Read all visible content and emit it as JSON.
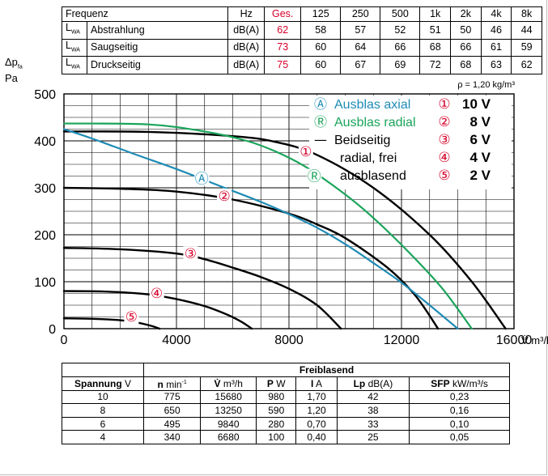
{
  "noise_table": {
    "header": [
      "Frequenz",
      "Hz",
      "Ges.",
      "125",
      "250",
      "500",
      "1k",
      "2k",
      "4k",
      "8k"
    ],
    "rows": [
      {
        "sym": "L",
        "sub": "WA",
        "label": "Abstrahlung",
        "unit": "dB(A)",
        "ges": "62",
        "vals": [
          "58",
          "57",
          "52",
          "51",
          "50",
          "46",
          "44"
        ]
      },
      {
        "sym": "L",
        "sub": "WA",
        "label": "Saugseitig",
        "unit": "dB(A)",
        "ges": "73",
        "vals": [
          "60",
          "64",
          "66",
          "68",
          "66",
          "61",
          "59"
        ]
      },
      {
        "sym": "L",
        "sub": "WA",
        "label": "Druckseitig",
        "unit": "dB(A)",
        "ges": "75",
        "vals": [
          "60",
          "67",
          "69",
          "72",
          "68",
          "63",
          "62"
        ]
      }
    ]
  },
  "y_axis_label": {
    "symbol": "Δp",
    "sub": "fa",
    "unit": "Pa"
  },
  "x_axis_label": "V̇ m³/h",
  "density_note": "ρ = 1,20 kg/m³",
  "chart_data": {
    "type": "line",
    "xlim": [
      0,
      16000
    ],
    "ylim": [
      0,
      500
    ],
    "xticks": [
      0,
      4000,
      8000,
      12000,
      16000
    ],
    "yticks": [
      0,
      100,
      200,
      300,
      400,
      500
    ],
    "xtick_labels": [
      "0",
      "4000",
      "8000",
      "12000",
      "16000"
    ],
    "ytick_labels": [
      "0",
      "100",
      "200",
      "300",
      "400",
      "500"
    ],
    "grid": true,
    "legend_position": "top-right",
    "series": [
      {
        "key": "1",
        "color": "#000000",
        "x": [
          0,
          3000,
          6000,
          7500,
          9000,
          11000,
          13000,
          14500,
          15700
        ],
        "y": [
          420,
          419,
          410,
          398,
          370,
          300,
          200,
          100,
          0
        ]
      },
      {
        "key": "2",
        "color": "#000000",
        "x": [
          0,
          2000,
          4000,
          6000,
          8000,
          9000,
          10000,
          11500,
          12500,
          13300
        ],
        "y": [
          300,
          298,
          292,
          275,
          245,
          222,
          193,
          130,
          70,
          0
        ]
      },
      {
        "key": "3",
        "color": "#000000",
        "x": [
          0,
          2000,
          4000,
          5000,
          6000,
          7000,
          8000,
          9000,
          9850
        ],
        "y": [
          172,
          169,
          160,
          148,
          130,
          110,
          85,
          50,
          0
        ]
      },
      {
        "key": "4",
        "color": "#000000",
        "x": [
          0,
          1500,
          3000,
          4000,
          5000,
          5800,
          6300,
          6680
        ],
        "y": [
          80,
          79,
          73,
          63,
          48,
          30,
          15,
          0
        ]
      },
      {
        "key": "5",
        "color": "#000000",
        "x": [
          0,
          1000,
          2000,
          2600,
          3100,
          3400
        ],
        "y": [
          22,
          21,
          18,
          13,
          6,
          0
        ]
      },
      {
        "key": "A",
        "color": "#1e8bb5",
        "x": [
          0,
          1000,
          2500,
          4000,
          5500,
          7000,
          8000,
          9000,
          10000,
          11000,
          12000,
          13000,
          14000
        ],
        "y": [
          425,
          405,
          372,
          340,
          305,
          270,
          244,
          215,
          180,
          140,
          98,
          50,
          0
        ]
      },
      {
        "key": "R",
        "color": "#1aa45a",
        "x": [
          0,
          3000,
          5000,
          6500,
          7500,
          8500,
          9500,
          10500,
          11500,
          12500,
          13500,
          14500
        ],
        "y": [
          437,
          435,
          420,
          400,
          378,
          348,
          308,
          262,
          208,
          148,
          82,
          0
        ]
      }
    ],
    "curve_markers": [
      {
        "key": "1",
        "glyph": "①",
        "color": "#d6002a",
        "x": 8600,
        "y": 378
      },
      {
        "key": "2",
        "glyph": "②",
        "color": "#d6002a",
        "x": 5700,
        "y": 283
      },
      {
        "key": "3",
        "glyph": "③",
        "color": "#d6002a",
        "x": 4500,
        "y": 160
      },
      {
        "key": "4",
        "glyph": "④",
        "color": "#d6002a",
        "x": 3300,
        "y": 76
      },
      {
        "key": "5",
        "glyph": "⑤",
        "color": "#d6002a",
        "x": 2400,
        "y": 26
      },
      {
        "key": "A",
        "glyph": "Ⓐ",
        "color": "#1e8bb5",
        "x": 4900,
        "y": 320
      },
      {
        "key": "R",
        "glyph": "Ⓡ",
        "color": "#1aa45a",
        "x": 8900,
        "y": 325
      }
    ],
    "legend_left": [
      {
        "glyph": "Ⓐ",
        "text": "Ausblas axial",
        "color": "#1e8bb5"
      },
      {
        "glyph": "Ⓡ",
        "text": "Ausblas radial",
        "color": "#1aa45a"
      },
      {
        "glyph": "—",
        "text": "Beidseitig",
        "color": "#000000"
      },
      {
        "glyph": "",
        "text": "radial, frei",
        "color": "#000000"
      },
      {
        "glyph": "",
        "text": "ausblasend",
        "color": "#000000"
      }
    ],
    "legend_right": [
      {
        "glyph": "①",
        "text": "10 V"
      },
      {
        "glyph": "②",
        "text": "8 V"
      },
      {
        "glyph": "③",
        "text": "6 V"
      },
      {
        "glyph": "④",
        "text": "4 V"
      },
      {
        "glyph": "⑤",
        "text": "2 V"
      }
    ]
  },
  "performance_table": {
    "group_header": "Freiblasend",
    "columns": [
      {
        "bold": "Spannung",
        "unit": " V"
      },
      {
        "bold": "n",
        "unit": " min",
        "sup": "-1"
      },
      {
        "bold": "V̇",
        "unit": " m³/h"
      },
      {
        "bold": "P",
        "unit": " W"
      },
      {
        "bold": "I",
        "unit": " A"
      },
      {
        "bold": "Lp",
        "unit": " dB(A)"
      },
      {
        "bold": "SFP",
        "unit": " kW/m³/s"
      }
    ],
    "rows": [
      [
        "10",
        "775",
        "15680",
        "980",
        "1,70",
        "42",
        "0,23"
      ],
      [
        "8",
        "650",
        "13250",
        "590",
        "1,20",
        "38",
        "0,16"
      ],
      [
        "6",
        "495",
        "9840",
        "280",
        "0,70",
        "33",
        "0,10"
      ],
      [
        "4",
        "340",
        "6680",
        "100",
        "0,40",
        "25",
        "0,05"
      ]
    ]
  }
}
